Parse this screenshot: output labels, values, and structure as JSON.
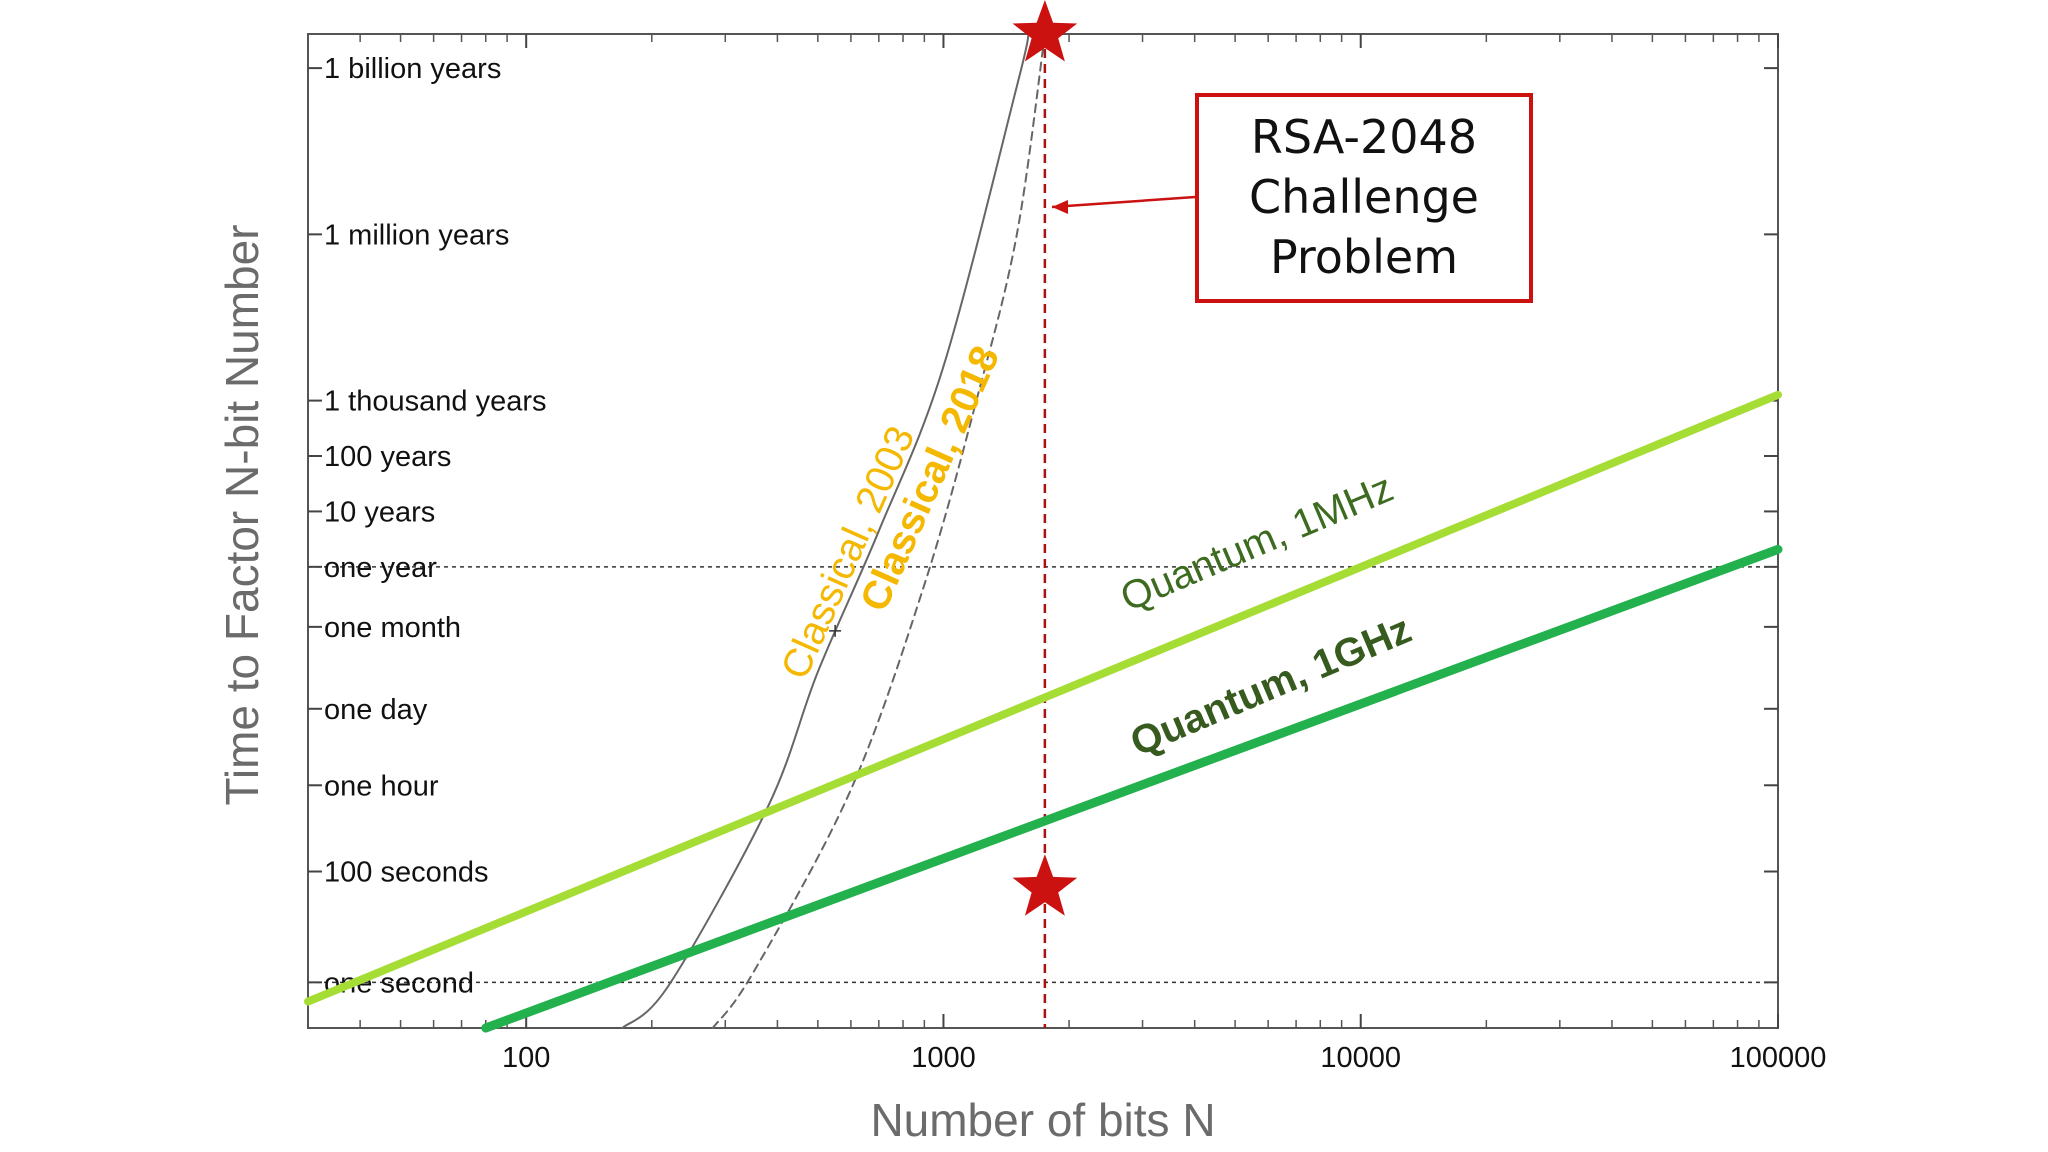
{
  "chart_data": {
    "type": "line",
    "xlabel": "Number of bits N",
    "ylabel": "Time to Factor N-bit Number",
    "x_scale": "log",
    "y_scale": "log",
    "xlim": [
      30,
      100000
    ],
    "ylim_seconds": [
      0.15,
      1.3e+17
    ],
    "x_ticks": [
      {
        "value": 100,
        "label": "100"
      },
      {
        "value": 1000,
        "label": "1000"
      },
      {
        "value": 10000,
        "label": "10000"
      },
      {
        "value": 100000,
        "label": "100000"
      }
    ],
    "y_ticks": [
      {
        "seconds": 3.15e+16,
        "label": "1 billion years"
      },
      {
        "seconds": 31500000000000.0,
        "label": "1 million years"
      },
      {
        "seconds": 31500000000.0,
        "label": "1 thousand years"
      },
      {
        "seconds": 3150000000.0,
        "label": "100 years"
      },
      {
        "seconds": 315000000.0,
        "label": "10 years"
      },
      {
        "seconds": 31500000.0,
        "label": "one year"
      },
      {
        "seconds": 2600000.0,
        "label": "one month"
      },
      {
        "seconds": 86400,
        "label": "one day"
      },
      {
        "seconds": 3600,
        "label": "one hour"
      },
      {
        "seconds": 100,
        "label": "100 seconds"
      },
      {
        "seconds": 1,
        "label": "one second"
      }
    ],
    "reference_lines": [
      {
        "type": "horizontal",
        "seconds": 31500000.0
      },
      {
        "type": "horizontal",
        "seconds": 1
      },
      {
        "type": "vertical",
        "x": 1750
      }
    ],
    "series": [
      {
        "name": "Classical, 2003",
        "style": "solid",
        "color": "#666666",
        "label_color": "#f5b800",
        "points": [
          [
            170,
            0.15
          ],
          [
            220,
            0.9
          ],
          [
            380,
            1500
          ],
          [
            500,
            400000.0
          ],
          [
            700,
            140000000.0
          ],
          [
            1000,
            130000000000.0
          ],
          [
            1500,
            1.5e+16
          ],
          [
            1600,
            1.3e+17
          ]
        ]
      },
      {
        "name": "Classical, 2018",
        "style": "dashed",
        "color": "#666666",
        "label_color": "#f5b800",
        "points": [
          [
            280,
            0.15
          ],
          [
            350,
            1.5
          ],
          [
            600,
            3000
          ],
          [
            900,
            15000000.0
          ],
          [
            1200,
            32000000000.0
          ],
          [
            1500,
            32000000000000.0
          ],
          [
            1750,
            1.3e+17
          ]
        ]
      },
      {
        "name": "Quantum, 1MHz",
        "style": "solid",
        "color": "#a6dd35",
        "label_color": "#3d6b1f",
        "points": [
          [
            30,
            0.45
          ],
          [
            100000,
            40000000000.0
          ]
        ]
      },
      {
        "name": "Quantum, 1GHz",
        "style": "solid",
        "color": "#22b14c",
        "label_color": "#375a1e",
        "points": [
          [
            80,
            0.15
          ],
          [
            100000,
            65000000.0
          ]
        ]
      }
    ],
    "markers": [
      {
        "shape": "star",
        "color": "#cc1111",
        "x": 1750,
        "seconds": 1.3e+17
      },
      {
        "shape": "star",
        "color": "#cc1111",
        "x": 1750,
        "seconds": 50
      }
    ],
    "annotation": {
      "lines": [
        "RSA-2048",
        "Challenge",
        "Problem"
      ],
      "border_color": "#cc1111",
      "points_to_x": 1750
    }
  }
}
